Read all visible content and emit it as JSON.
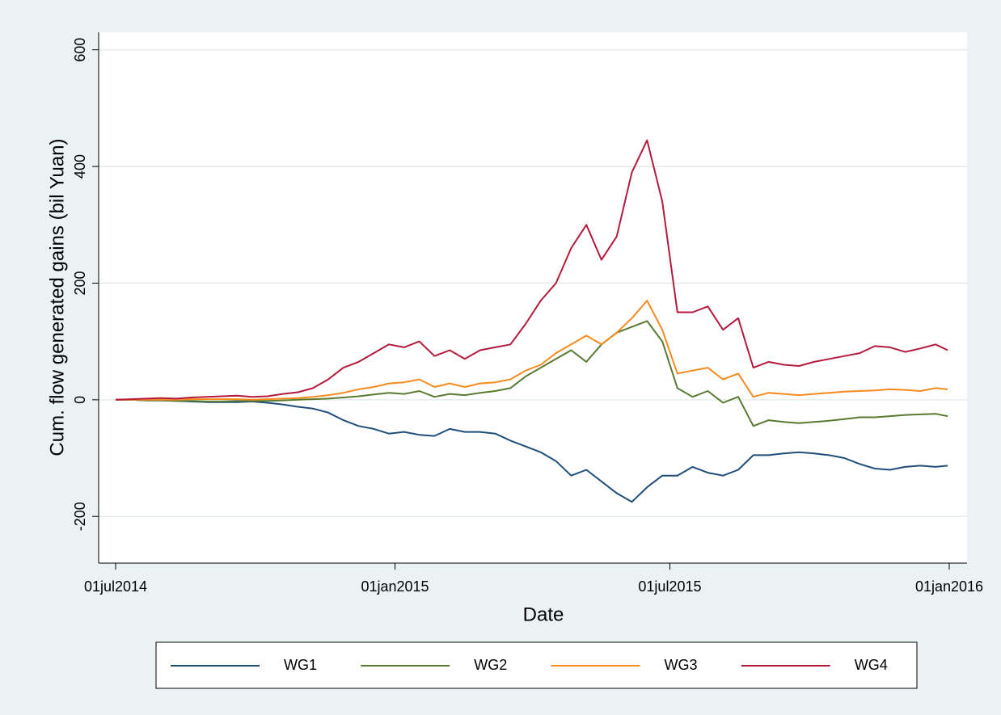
{
  "chart_data": {
    "type": "line",
    "y_label": "Cum. flow generated gains (bil Yuan)",
    "x_label": "Date",
    "x": [
      "2014-07-01",
      "2014-07-11",
      "2014-07-21",
      "2014-07-31",
      "2014-08-10",
      "2014-08-20",
      "2014-08-30",
      "2014-09-09",
      "2014-09-19",
      "2014-09-29",
      "2014-10-09",
      "2014-10-19",
      "2014-10-29",
      "2014-11-08",
      "2014-11-18",
      "2014-11-28",
      "2014-12-08",
      "2014-12-18",
      "2014-12-28",
      "2015-01-07",
      "2015-01-17",
      "2015-01-27",
      "2015-02-06",
      "2015-02-16",
      "2015-02-26",
      "2015-03-08",
      "2015-03-18",
      "2015-03-28",
      "2015-04-07",
      "2015-04-17",
      "2015-04-27",
      "2015-05-07",
      "2015-05-17",
      "2015-05-27",
      "2015-06-06",
      "2015-06-16",
      "2015-06-26",
      "2015-07-06",
      "2015-07-16",
      "2015-07-26",
      "2015-08-05",
      "2015-08-15",
      "2015-08-25",
      "2015-09-04",
      "2015-09-14",
      "2015-09-24",
      "2015-10-04",
      "2015-10-14",
      "2015-10-24",
      "2015-11-03",
      "2015-11-13",
      "2015-11-23",
      "2015-12-03",
      "2015-12-13",
      "2015-12-23",
      "2015-12-31"
    ],
    "xlim": [
      "2014-07-01",
      "2016-01-01"
    ],
    "xticks": [
      {
        "value": "2014-07-01",
        "label": "01jul2014"
      },
      {
        "value": "2015-01-01",
        "label": "01jan2015"
      },
      {
        "value": "2015-07-01",
        "label": "01jul2015"
      },
      {
        "value": "2016-01-01",
        "label": "01jan2016"
      }
    ],
    "ylim": [
      -280,
      630
    ],
    "yticks": [
      -200,
      0,
      200,
      400,
      600
    ],
    "grid": true,
    "legend": "bottom",
    "series": [
      {
        "name": "WG1",
        "color": "#1f4e79",
        "values": [
          0,
          0,
          -1,
          -1,
          -2,
          -3,
          -4,
          -4,
          -4,
          -3,
          -5,
          -8,
          -12,
          -15,
          -22,
          -35,
          -45,
          -50,
          -58,
          -55,
          -60,
          -62,
          -50,
          -55,
          -55,
          -58,
          -70,
          -80,
          -90,
          -105,
          -130,
          -120,
          -140,
          -160,
          -175,
          -150,
          -130,
          -130,
          -115,
          -125,
          -130,
          -120,
          -95,
          -95,
          -92,
          -90,
          -92,
          -95,
          -100,
          -110,
          -118,
          -120,
          -115,
          -113,
          -115,
          -113
        ]
      },
      {
        "name": "WG2",
        "color": "#5a7a32",
        "values": [
          0,
          0,
          -1,
          -1,
          -2,
          -2,
          -3,
          -3,
          -2,
          -2,
          -2,
          -1,
          0,
          1,
          2,
          4,
          6,
          9,
          12,
          10,
          15,
          5,
          10,
          8,
          12,
          15,
          20,
          40,
          55,
          70,
          85,
          65,
          95,
          115,
          125,
          135,
          100,
          20,
          5,
          15,
          -5,
          5,
          -45,
          -35,
          -38,
          -40,
          -38,
          -36,
          -33,
          -30,
          -30,
          -28,
          -26,
          -25,
          -24,
          -28
        ]
      },
      {
        "name": "WG3",
        "color": "#f58a1f",
        "values": [
          0,
          0,
          0,
          0,
          0,
          1,
          1,
          1,
          1,
          0,
          1,
          2,
          3,
          5,
          8,
          12,
          18,
          22,
          28,
          30,
          35,
          22,
          28,
          22,
          28,
          30,
          35,
          50,
          60,
          80,
          95,
          110,
          95,
          115,
          140,
          170,
          120,
          45,
          50,
          55,
          35,
          45,
          5,
          12,
          10,
          8,
          10,
          12,
          14,
          15,
          16,
          18,
          17,
          15,
          20,
          18
        ]
      },
      {
        "name": "WG4",
        "color": "#b31b3c",
        "values": [
          0,
          1,
          2,
          3,
          2,
          4,
          5,
          6,
          7,
          5,
          6,
          10,
          13,
          20,
          35,
          55,
          65,
          80,
          95,
          90,
          100,
          75,
          85,
          70,
          85,
          90,
          95,
          130,
          170,
          200,
          260,
          300,
          240,
          280,
          390,
          445,
          340,
          150,
          150,
          160,
          120,
          140,
          55,
          65,
          60,
          58,
          65,
          70,
          75,
          80,
          92,
          90,
          82,
          88,
          95,
          85
        ]
      }
    ]
  }
}
